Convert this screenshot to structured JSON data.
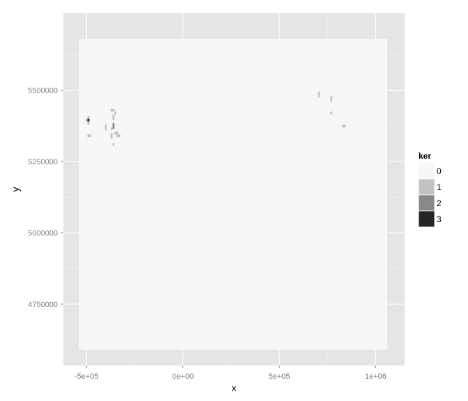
{
  "chart_data": {
    "type": "heatmap",
    "xlabel": "x",
    "ylabel": "y",
    "xlim": [
      -620000,
      1150000
    ],
    "ylim": [
      4535000,
      5770000
    ],
    "data_extent": {
      "x": [
        -540000,
        1060000
      ],
      "y": [
        4590000,
        5680000
      ]
    },
    "x_ticks": [
      {
        "value": -500000,
        "label": "-5e+05"
      },
      {
        "value": 0,
        "label": "0e+00"
      },
      {
        "value": 500000,
        "label": "5e+05"
      },
      {
        "value": 1000000,
        "label": "1e+06"
      }
    ],
    "y_ticks": [
      {
        "value": 4750000,
        "label": "4750000"
      },
      {
        "value": 5000000,
        "label": "5000000"
      },
      {
        "value": 5250000,
        "label": "5250000"
      },
      {
        "value": 5500000,
        "label": "5500000"
      }
    ],
    "grid": true,
    "background_value": 0,
    "cell_size": [
      10000,
      10000
    ],
    "legend": {
      "title": "ker",
      "placement": "right",
      "entries": [
        {
          "label": "0",
          "value": 0
        },
        {
          "label": "1",
          "value": 1
        },
        {
          "label": "2",
          "value": 2
        },
        {
          "label": "3",
          "value": 3
        }
      ]
    },
    "colors": {
      "0": "#f7f7f7",
      "1": "#c2c2c2",
      "2": "#888888",
      "3": "#252525",
      "panel": "#e5e5e5",
      "grid_major": "#ffffff",
      "grid_minor": "#f2f2f2"
    },
    "cells": [
      {
        "x": -500000,
        "y": 5395000,
        "value": 1
      },
      {
        "x": -490000,
        "y": 5405000,
        "value": 1
      },
      {
        "x": -490000,
        "y": 5395000,
        "value": 3
      },
      {
        "x": -490000,
        "y": 5385000,
        "value": 1
      },
      {
        "x": -490000,
        "y": 5340000,
        "value": 1
      },
      {
        "x": -480000,
        "y": 5340000,
        "value": 1
      },
      {
        "x": -400000,
        "y": 5375000,
        "value": 1
      },
      {
        "x": -400000,
        "y": 5365000,
        "value": 1
      },
      {
        "x": -370000,
        "y": 5430000,
        "value": 1
      },
      {
        "x": -370000,
        "y": 5365000,
        "value": 1
      },
      {
        "x": -370000,
        "y": 5345000,
        "value": 1
      },
      {
        "x": -370000,
        "y": 5335000,
        "value": 1
      },
      {
        "x": -360000,
        "y": 5430000,
        "value": 1
      },
      {
        "x": -360000,
        "y": 5410000,
        "value": 1
      },
      {
        "x": -360000,
        "y": 5400000,
        "value": 1
      },
      {
        "x": -360000,
        "y": 5380000,
        "value": 2
      },
      {
        "x": -360000,
        "y": 5370000,
        "value": 2
      },
      {
        "x": -360000,
        "y": 5310000,
        "value": 1
      },
      {
        "x": -350000,
        "y": 5420000,
        "value": 1
      },
      {
        "x": -350000,
        "y": 5350000,
        "value": 1
      },
      {
        "x": -340000,
        "y": 5350000,
        "value": 1
      },
      {
        "x": -340000,
        "y": 5340000,
        "value": 1
      },
      {
        "x": -330000,
        "y": 5340000,
        "value": 1
      },
      {
        "x": 705000,
        "y": 5490000,
        "value": 1
      },
      {
        "x": 705000,
        "y": 5480000,
        "value": 1
      },
      {
        "x": 770000,
        "y": 5475000,
        "value": 1
      },
      {
        "x": 770000,
        "y": 5465000,
        "value": 1
      },
      {
        "x": 770000,
        "y": 5420000,
        "value": 1
      },
      {
        "x": 830000,
        "y": 5375000,
        "value": 1
      },
      {
        "x": 840000,
        "y": 5375000,
        "value": 1
      }
    ]
  }
}
